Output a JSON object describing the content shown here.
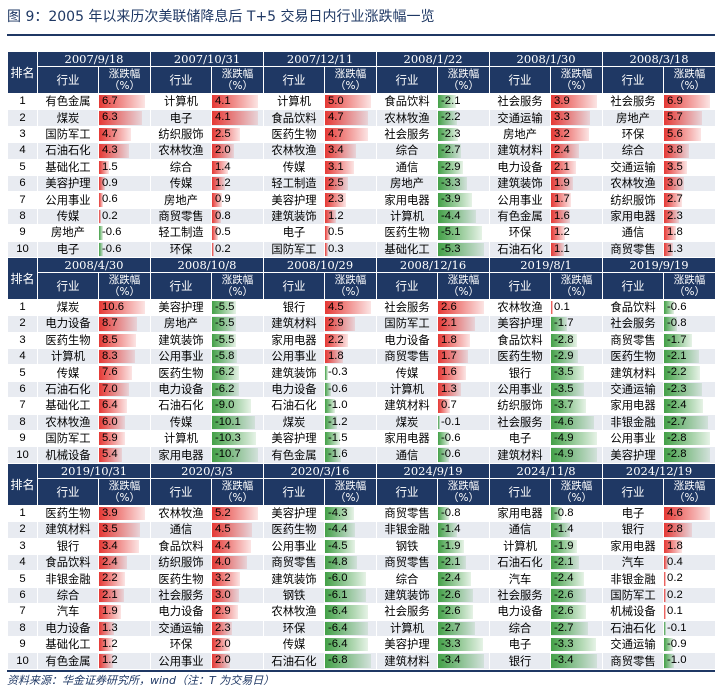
{
  "title": "图 9：2005 年以来历次美联储降息后 T+5 交易日内行业涨跌幅一览",
  "source": "资料来源：华金证券研究所，wind（注：T 为交易日）",
  "header": {
    "rank_label": "排名",
    "industry_label": "行业",
    "change_label": "涨跌幅（%）"
  },
  "colors": {
    "header_bg": "#1F3864",
    "positive": "#E53935",
    "negative": "#43A047",
    "stripe": "#E8EBF1"
  },
  "chart_data": {
    "type": "table",
    "blocks": [
      {
        "dates": [
          "2007/9/18",
          "2007/10/31",
          "2007/12/11",
          "2008/1/22",
          "2008/1/30",
          "2008/3/18"
        ],
        "rows": [
          [
            [
              "有色金属",
              "6.7"
            ],
            [
              "计算机",
              "4.1"
            ],
            [
              "计算机",
              "5.0"
            ],
            [
              "食品饮料",
              "-2.1"
            ],
            [
              "社会服务",
              "3.9"
            ],
            [
              "社会服务",
              "6.9"
            ]
          ],
          [
            [
              "煤炭",
              "6.3"
            ],
            [
              "电子",
              "4.1"
            ],
            [
              "食品饮料",
              "4.7"
            ],
            [
              "农林牧渔",
              "-2.2"
            ],
            [
              "交通运输",
              "3.3"
            ],
            [
              "房地产",
              "5.7"
            ]
          ],
          [
            [
              "国防军工",
              "4.7"
            ],
            [
              "纺织服饰",
              "2.5"
            ],
            [
              "医药生物",
              "4.7"
            ],
            [
              "社会服务",
              "-2.3"
            ],
            [
              "房地产",
              "3.2"
            ],
            [
              "环保",
              "5.6"
            ]
          ],
          [
            [
              "石油石化",
              "4.3"
            ],
            [
              "农林牧渔",
              "2.0"
            ],
            [
              "农林牧渔",
              "3.4"
            ],
            [
              "综合",
              "-2.7"
            ],
            [
              "建筑材料",
              "2.4"
            ],
            [
              "综合",
              "3.8"
            ]
          ],
          [
            [
              "基础化工",
              "1.5"
            ],
            [
              "综合",
              "1.4"
            ],
            [
              "传媒",
              "3.1"
            ],
            [
              "通信",
              "-2.9"
            ],
            [
              "电力设备",
              "2.1"
            ],
            [
              "交通运输",
              "3.5"
            ]
          ],
          [
            [
              "美容护理",
              "0.9"
            ],
            [
              "传媒",
              "1.2"
            ],
            [
              "轻工制造",
              "2.5"
            ],
            [
              "房地产",
              "-3.3"
            ],
            [
              "建筑装饰",
              "1.9"
            ],
            [
              "农林牧渔",
              "3.0"
            ]
          ],
          [
            [
              "公用事业",
              "0.6"
            ],
            [
              "房地产",
              "0.9"
            ],
            [
              "美容护理",
              "2.3"
            ],
            [
              "家用电器",
              "-3.9"
            ],
            [
              "公用事业",
              "1.7"
            ],
            [
              "纺织服饰",
              "2.7"
            ]
          ],
          [
            [
              "传媒",
              "0.2"
            ],
            [
              "商贸零售",
              "0.8"
            ],
            [
              "建筑装饰",
              "1.2"
            ],
            [
              "计算机",
              "-4.4"
            ],
            [
              "有色金属",
              "1.6"
            ],
            [
              "家用电器",
              "2.3"
            ]
          ],
          [
            [
              "房地产",
              "-0.6"
            ],
            [
              "轻工制造",
              "0.5"
            ],
            [
              "电子",
              "0.5"
            ],
            [
              "医药生物",
              "-5.1"
            ],
            [
              "环保",
              "1.2"
            ],
            [
              "通信",
              "1.8"
            ]
          ],
          [
            [
              "电子",
              "-0.6"
            ],
            [
              "环保",
              "0.2"
            ],
            [
              "国防军工",
              "0.3"
            ],
            [
              "基础化工",
              "-5.3"
            ],
            [
              "石油石化",
              "1.1"
            ],
            [
              "商贸零售",
              "1.3"
            ]
          ]
        ]
      },
      {
        "dates": [
          "2008/4/30",
          "2008/10/8",
          "2008/10/29",
          "2008/12/16",
          "2019/8/1",
          "2019/9/19"
        ],
        "rows": [
          [
            [
              "煤炭",
              "10.6"
            ],
            [
              "美容护理",
              "-5.5"
            ],
            [
              "银行",
              "4.5"
            ],
            [
              "社会服务",
              "2.6"
            ],
            [
              "农林牧渔",
              "0.1"
            ],
            [
              "食品饮料",
              "-0.6"
            ]
          ],
          [
            [
              "电力设备",
              "8.7"
            ],
            [
              "房地产",
              "-5.5"
            ],
            [
              "建筑材料",
              "2.9"
            ],
            [
              "国防军工",
              "2.1"
            ],
            [
              "美容护理",
              "-1.7"
            ],
            [
              "社会服务",
              "-0.8"
            ]
          ],
          [
            [
              "医药生物",
              "8.5"
            ],
            [
              "建筑装饰",
              "-5.5"
            ],
            [
              "家用电器",
              "2.2"
            ],
            [
              "电力设备",
              "1.8"
            ],
            [
              "食品饮料",
              "-2.8"
            ],
            [
              "商贸零售",
              "-1.7"
            ]
          ],
          [
            [
              "计算机",
              "8.3"
            ],
            [
              "公用事业",
              "-5.8"
            ],
            [
              "公用事业",
              "1.8"
            ],
            [
              "商贸零售",
              "1.7"
            ],
            [
              "医药生物",
              "-2.9"
            ],
            [
              "医药生物",
              "-2.1"
            ]
          ],
          [
            [
              "传媒",
              "7.6"
            ],
            [
              "医药生物",
              "-6.2"
            ],
            [
              "建筑装饰",
              "-0.3"
            ],
            [
              "传媒",
              "1.6"
            ],
            [
              "银行",
              "-3.5"
            ],
            [
              "建筑材料",
              "-2.2"
            ]
          ],
          [
            [
              "石油石化",
              "7.0"
            ],
            [
              "电力设备",
              "-6.2"
            ],
            [
              "电力设备",
              "-0.6"
            ],
            [
              "计算机",
              "1.3"
            ],
            [
              "公用事业",
              "-3.5"
            ],
            [
              "交通运输",
              "-2.3"
            ]
          ],
          [
            [
              "基础化工",
              "6.4"
            ],
            [
              "石油石化",
              "-9.0"
            ],
            [
              "石油石化",
              "-1.0"
            ],
            [
              "建筑材料",
              "0.7"
            ],
            [
              "纺织服饰",
              "-3.7"
            ],
            [
              "家用电器",
              "-2.4"
            ]
          ],
          [
            [
              "农林牧渔",
              "6.0"
            ],
            [
              "传媒",
              "-10.1"
            ],
            [
              "煤炭",
              "-1.2"
            ],
            [
              "煤炭",
              "-0.1"
            ],
            [
              "社会服务",
              "-4.6"
            ],
            [
              "非银金融",
              "-2.7"
            ]
          ],
          [
            [
              "国防军工",
              "5.9"
            ],
            [
              "计算机",
              "-10.3"
            ],
            [
              "美容护理",
              "-1.5"
            ],
            [
              "家用电器",
              "-0.6"
            ],
            [
              "电子",
              "-4.9"
            ],
            [
              "公用事业",
              "-2.8"
            ]
          ],
          [
            [
              "机械设备",
              "5.4"
            ],
            [
              "家用电器",
              "-10.7"
            ],
            [
              "有色金属",
              "-1.6"
            ],
            [
              "通信",
              "-0.6"
            ],
            [
              "建筑材料",
              "-4.9"
            ],
            [
              "美容护理",
              "-2.8"
            ]
          ]
        ]
      },
      {
        "dates": [
          "2019/10/31",
          "2020/3/3",
          "2020/3/16",
          "2024/9/19",
          "2024/11/8",
          "2024/12/19"
        ],
        "rows": [
          [
            [
              "医药生物",
              "3.9"
            ],
            [
              "农林牧渔",
              "5.2"
            ],
            [
              "美容护理",
              "-4.3"
            ],
            [
              "商贸零售",
              "-0.8"
            ],
            [
              "家用电器",
              "-0.8"
            ],
            [
              "电子",
              "4.6"
            ]
          ],
          [
            [
              "建筑材料",
              "3.5"
            ],
            [
              "通信",
              "4.5"
            ],
            [
              "医药生物",
              "-4.4"
            ],
            [
              "非银金融",
              "-1.4"
            ],
            [
              "通信",
              "-1.4"
            ],
            [
              "银行",
              "2.8"
            ]
          ],
          [
            [
              "银行",
              "3.4"
            ],
            [
              "食品饮料",
              "4.4"
            ],
            [
              "公用事业",
              "-4.5"
            ],
            [
              "钢铁",
              "-1.9"
            ],
            [
              "计算机",
              "-1.9"
            ],
            [
              "家用电器",
              "1.8"
            ]
          ],
          [
            [
              "食品饮料",
              "2.4"
            ],
            [
              "纺织服饰",
              "4.0"
            ],
            [
              "商贸零售",
              "-4.8"
            ],
            [
              "商贸零售",
              "-2.1"
            ],
            [
              "石油石化",
              "-2.1"
            ],
            [
              "汽车",
              "0.4"
            ]
          ],
          [
            [
              "非银金融",
              "2.2"
            ],
            [
              "医药生物",
              "3.2"
            ],
            [
              "建筑装饰",
              "-6.0"
            ],
            [
              "综合",
              "-2.4"
            ],
            [
              "汽车",
              "-2.4"
            ],
            [
              "非银金融",
              "0.2"
            ]
          ],
          [
            [
              "综合",
              "2.1"
            ],
            [
              "社会服务",
              "3.0"
            ],
            [
              "钢铁",
              "-6.1"
            ],
            [
              "建筑装饰",
              "-2.6"
            ],
            [
              "社会服务",
              "-2.6"
            ],
            [
              "国防军工",
              "0.2"
            ]
          ],
          [
            [
              "汽车",
              "1.9"
            ],
            [
              "电力设备",
              "2.9"
            ],
            [
              "农林牧渔",
              "-6.4"
            ],
            [
              "社会服务",
              "-2.6"
            ],
            [
              "电力设备",
              "-2.6"
            ],
            [
              "机械设备",
              "0.1"
            ]
          ],
          [
            [
              "电力设备",
              "1.3"
            ],
            [
              "交通运输",
              "2.3"
            ],
            [
              "环保",
              "-6.4"
            ],
            [
              "计算机",
              "-2.7"
            ],
            [
              "综合",
              "-2.7"
            ],
            [
              "石油石化",
              "-0.1"
            ]
          ],
          [
            [
              "基础化工",
              "1.2"
            ],
            [
              "环保",
              "2.0"
            ],
            [
              "传媒",
              "-6.4"
            ],
            [
              "美容护理",
              "-3.3"
            ],
            [
              "电子",
              "-3.3"
            ],
            [
              "交通运输",
              "-0.9"
            ]
          ],
          [
            [
              "有色金属",
              "1.2"
            ],
            [
              "公用事业",
              "2.0"
            ],
            [
              "石油石化",
              "-6.8"
            ],
            [
              "建筑材料",
              "-3.4"
            ],
            [
              "银行",
              "-3.4"
            ],
            [
              "商贸零售",
              "-1.0"
            ]
          ]
        ]
      }
    ]
  }
}
